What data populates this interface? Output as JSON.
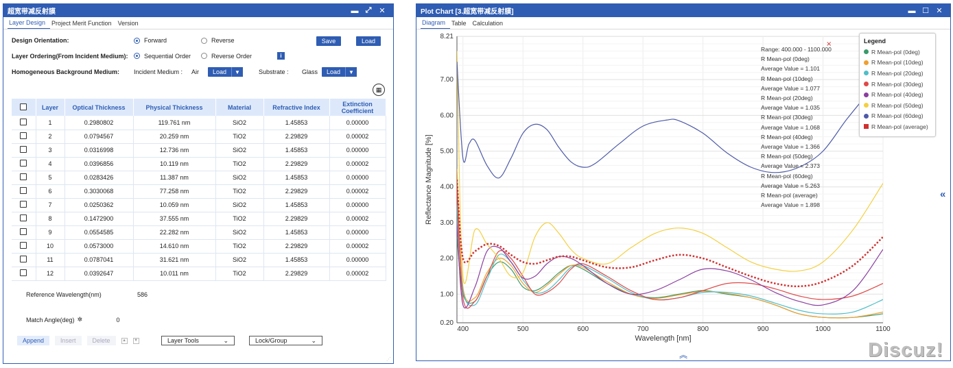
{
  "left_window": {
    "title": "超宽带减反射膜",
    "tabs": [
      "Layer Design",
      "Project Merit Function",
      "Version"
    ],
    "design_orientation": {
      "label": "Design Orientation:",
      "options": [
        "Forward",
        "Reverse"
      ],
      "selected": "Forward"
    },
    "save_label": "Save",
    "load_label": "Load",
    "layer_ordering": {
      "label": "Layer Ordering(From Incident Medium):",
      "options": [
        "Sequential Order",
        "Reverse Order"
      ],
      "selected": "Sequential Order"
    },
    "background": {
      "label": "Homogeneous Background Medium:",
      "incident_label": "Incident Medium :",
      "incident_value": "Air",
      "substrate_label": "Substrate :",
      "substrate_value": "Glass",
      "load_label": "Load"
    },
    "table": {
      "headers": [
        "Layer",
        "Optical Thickness",
        "Physical Thickness",
        "Material",
        "Refractive Index",
        "Extinction Coefficient"
      ],
      "rows": [
        [
          "1",
          "0.2980802",
          "119.761 nm",
          "SiO2",
          "1.45853",
          "0.00000"
        ],
        [
          "2",
          "0.0794567",
          "20.259 nm",
          "TiO2",
          "2.29829",
          "0.00002"
        ],
        [
          "3",
          "0.0316998",
          "12.736 nm",
          "SiO2",
          "1.45853",
          "0.00000"
        ],
        [
          "4",
          "0.0396856",
          "10.119 nm",
          "TiO2",
          "2.29829",
          "0.00002"
        ],
        [
          "5",
          "0.0283426",
          "11.387 nm",
          "SiO2",
          "1.45853",
          "0.00000"
        ],
        [
          "6",
          "0.3030068",
          "77.258 nm",
          "TiO2",
          "2.29829",
          "0.00002"
        ],
        [
          "7",
          "0.0250362",
          "10.059 nm",
          "SiO2",
          "1.45853",
          "0.00000"
        ],
        [
          "8",
          "0.1472900",
          "37.555 nm",
          "TiO2",
          "2.29829",
          "0.00002"
        ],
        [
          "9",
          "0.0554585",
          "22.282 nm",
          "SiO2",
          "1.45853",
          "0.00000"
        ],
        [
          "10",
          "0.0573000",
          "14.610 nm",
          "TiO2",
          "2.29829",
          "0.00002"
        ],
        [
          "11",
          "0.0787041",
          "31.621 nm",
          "SiO2",
          "1.45853",
          "0.00000"
        ],
        [
          "12",
          "0.0392647",
          "10.011 nm",
          "TiO2",
          "2.29829",
          "0.00002"
        ]
      ]
    },
    "reference_wavelength": {
      "label": "Reference Wavelength(nm)",
      "value": "586"
    },
    "match_angle": {
      "label": "Match Angle(deg)",
      "value": "0"
    },
    "actions": {
      "append": "Append",
      "insert": "Insert",
      "delete": "Delete",
      "layer_tools": "Layer Tools",
      "lock_group": "Lock/Group"
    }
  },
  "right_window": {
    "title": "Plot Chart [3.超宽带减反射膜]",
    "tabs": [
      "Diagram",
      "Table",
      "Calculation"
    ],
    "annotation": [
      "Range: 400.000 - 1100.000",
      "R Mean-pol (0deg)",
      "Average Value = 1.101",
      "R Mean-pol (10deg)",
      "Average Value = 1.077",
      "R Mean-pol (20deg)",
      "Average Value = 1.035",
      "R Mean-pol (30deg)",
      "Average Value = 1.068",
      "R Mean-pol (40deg)",
      "Average Value = 1.366",
      "R Mean-pol (50deg)",
      "Average Value = 2.373",
      "R Mean-pol (60deg)",
      "Average Value = 5.263",
      "R Mean-pol (average)",
      "Average Value = 1.898"
    ],
    "legend_title": "Legend",
    "watermark": "Discuz!"
  },
  "chart_data": {
    "type": "line",
    "xlabel": "Wavelength [nm]",
    "ylabel": "Reflectance Magnitude [%]",
    "xlim": [
      390,
      1100
    ],
    "ylim": [
      0.2,
      8.21
    ],
    "xticks": [
      400,
      500,
      600,
      700,
      800,
      900,
      1000,
      1100
    ],
    "yticks": [
      0.2,
      1.0,
      2.0,
      3.0,
      4.0,
      5.0,
      6.0,
      7.0,
      8.21
    ],
    "ytick_labels": [
      "0.20",
      "1.00",
      "2.00",
      "3.00",
      "4.00",
      "5.00",
      "6.00",
      "7.00",
      "8.21"
    ],
    "grid": true,
    "legend_position": "top-right",
    "series": [
      {
        "name": "R Mean-pol (0deg)",
        "color": "#3a9a6a",
        "x": [
          390,
          400,
          420,
          440,
          460,
          480,
          500,
          520,
          540,
          560,
          580,
          600,
          640,
          680,
          720,
          760,
          800,
          840,
          880,
          920,
          960,
          1000,
          1050,
          1100
        ],
        "y": [
          2.6,
          1.0,
          0.8,
          1.5,
          1.9,
          1.7,
          1.2,
          1.1,
          1.3,
          1.6,
          1.8,
          1.7,
          1.3,
          1.0,
          0.9,
          1.0,
          1.1,
          1.0,
          0.9,
          0.7,
          0.45,
          0.35,
          0.35,
          0.45
        ]
      },
      {
        "name": "R Mean-pol (10deg)",
        "color": "#f0a030",
        "x": [
          390,
          400,
          420,
          440,
          460,
          480,
          500,
          520,
          540,
          560,
          580,
          600,
          640,
          680,
          720,
          760,
          800,
          840,
          880,
          920,
          960,
          1000,
          1050,
          1100
        ],
        "y": [
          4.5,
          1.2,
          0.9,
          1.6,
          2.0,
          1.8,
          1.3,
          1.05,
          1.25,
          1.55,
          1.8,
          1.75,
          1.35,
          1.0,
          0.88,
          0.98,
          1.08,
          1.02,
          0.9,
          0.7,
          0.45,
          0.35,
          0.35,
          0.5
        ]
      },
      {
        "name": "R Mean-pol (20deg)",
        "color": "#4fbec8",
        "x": [
          390,
          400,
          420,
          440,
          460,
          480,
          500,
          520,
          540,
          560,
          580,
          600,
          640,
          680,
          720,
          760,
          800,
          840,
          880,
          920,
          960,
          1000,
          1050,
          1100
        ],
        "y": [
          3.5,
          1.1,
          0.7,
          1.4,
          2.1,
          1.9,
          1.4,
          1.05,
          1.1,
          1.4,
          1.75,
          1.8,
          1.45,
          1.05,
          0.85,
          0.9,
          1.05,
          1.05,
          0.95,
          0.75,
          0.55,
          0.45,
          0.5,
          0.85
        ]
      },
      {
        "name": "R Mean-pol (30deg)",
        "color": "#e04848",
        "x": [
          390,
          400,
          420,
          440,
          460,
          480,
          500,
          520,
          540,
          560,
          580,
          600,
          640,
          680,
          720,
          760,
          800,
          840,
          880,
          920,
          960,
          1000,
          1050,
          1100
        ],
        "y": [
          4.0,
          0.9,
          0.8,
          1.5,
          2.2,
          2.0,
          1.5,
          1.0,
          1.05,
          1.3,
          1.7,
          1.85,
          1.5,
          1.1,
          0.85,
          0.9,
          1.1,
          1.3,
          1.3,
          1.15,
          0.95,
          0.85,
          0.95,
          1.3
        ]
      },
      {
        "name": "R Mean-pol (40deg)",
        "color": "#8a3fa0",
        "x": [
          390,
          400,
          420,
          440,
          460,
          480,
          500,
          520,
          540,
          560,
          580,
          600,
          640,
          680,
          720,
          760,
          800,
          840,
          880,
          920,
          960,
          1000,
          1050,
          1100
        ],
        "y": [
          3.0,
          0.7,
          1.2,
          2.2,
          2.3,
          1.9,
          1.45,
          1.5,
          1.85,
          2.05,
          2.0,
          1.8,
          1.3,
          1.0,
          1.1,
          1.4,
          1.7,
          1.65,
          1.4,
          1.05,
          0.8,
          0.7,
          1.1,
          2.25
        ]
      },
      {
        "name": "R Mean-pol (50deg)",
        "color": "#f3d040",
        "x": [
          390,
          400,
          420,
          440,
          460,
          480,
          500,
          520,
          540,
          560,
          580,
          600,
          640,
          680,
          720,
          760,
          800,
          840,
          880,
          920,
          960,
          1000,
          1050,
          1100
        ],
        "y": [
          7.8,
          1.5,
          2.8,
          2.4,
          2.0,
          1.5,
          1.6,
          2.6,
          3.0,
          2.7,
          2.25,
          2.0,
          1.85,
          2.3,
          2.7,
          2.85,
          2.7,
          2.3,
          1.9,
          1.7,
          1.65,
          1.9,
          2.8,
          4.1
        ]
      },
      {
        "name": "R Mean-pol (60deg)",
        "color": "#4d5aa8",
        "x": [
          390,
          400,
          410,
          420,
          440,
          460,
          480,
          500,
          520,
          540,
          560,
          580,
          600,
          620,
          660,
          700,
          740,
          760,
          800,
          840,
          880,
          920,
          960,
          1000,
          1040,
          1080,
          1100
        ],
        "y": [
          7.5,
          4.8,
          5.2,
          5.3,
          4.6,
          4.25,
          4.8,
          5.5,
          5.75,
          5.6,
          5.1,
          4.7,
          4.55,
          4.65,
          5.2,
          5.7,
          5.87,
          5.85,
          5.5,
          4.95,
          4.55,
          4.4,
          4.55,
          5.0,
          5.9,
          6.7,
          7.0
        ]
      },
      {
        "name": "R Mean-pol (average)",
        "color": "#d03030",
        "dashed": true,
        "x": [
          390,
          400,
          420,
          440,
          460,
          480,
          500,
          520,
          540,
          560,
          580,
          600,
          640,
          680,
          720,
          760,
          800,
          840,
          880,
          920,
          960,
          1000,
          1050,
          1100
        ],
        "y": [
          4.2,
          2.0,
          2.2,
          2.4,
          2.35,
          2.1,
          1.9,
          1.85,
          1.95,
          2.05,
          2.05,
          1.95,
          1.75,
          1.75,
          1.95,
          2.1,
          2.0,
          1.75,
          1.5,
          1.3,
          1.22,
          1.35,
          1.8,
          2.6
        ]
      }
    ]
  }
}
